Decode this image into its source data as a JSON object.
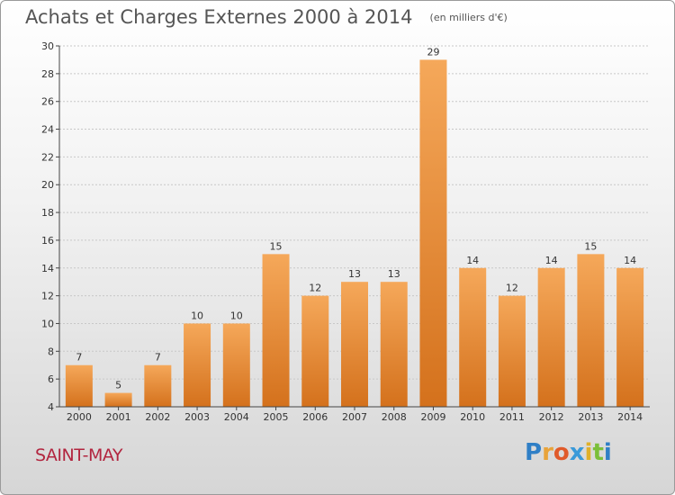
{
  "title": "Achats et Charges Externes 2000 à 2014",
  "subtitle": "(en milliers d'€)",
  "commune": "SAINT-MAY",
  "logo": {
    "text": "Proxiti",
    "letters": [
      "P",
      "r",
      "o",
      "x",
      "i",
      "t",
      "i"
    ],
    "colors": [
      "#2f7fc6",
      "#e8a33a",
      "#e05a2a",
      "#3a9ad9",
      "#e0b02a",
      "#7bbf3a",
      "#2f7fc6"
    ]
  },
  "chart_data": {
    "type": "bar",
    "categories": [
      "2000",
      "2001",
      "2002",
      "2003",
      "2004",
      "2005",
      "2006",
      "2007",
      "2008",
      "2009",
      "2010",
      "2011",
      "2012",
      "2013",
      "2014"
    ],
    "values": [
      7,
      5,
      7,
      10,
      10,
      15,
      12,
      13,
      13,
      29,
      14,
      12,
      14,
      15,
      14
    ],
    "ylim": [
      4,
      30
    ],
    "yticks": [
      4,
      6,
      8,
      10,
      12,
      14,
      16,
      18,
      20,
      22,
      24,
      26,
      28,
      30
    ],
    "grid": true,
    "colors": {
      "bar_light": "#f5a85a",
      "bar_dark": "#d4711c",
      "axis": "#444444",
      "grid": "#c8c8c8"
    }
  }
}
